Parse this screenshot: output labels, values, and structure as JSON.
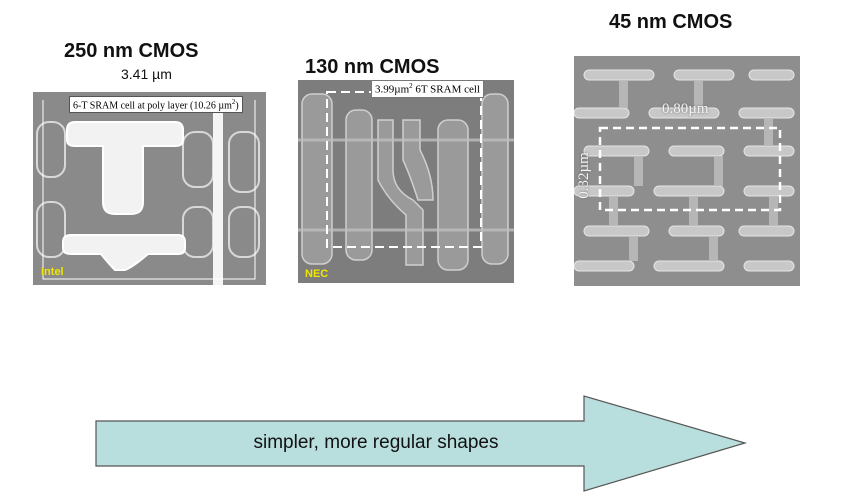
{
  "panels": [
    {
      "title": "250 nm CMOS",
      "subtitle": "3.41 µm",
      "label_main": "6-T SRAM cell at poly layer (10.26 µm",
      "label_sup": "2",
      "label_tail": ")",
      "vendor": "Intel"
    },
    {
      "title": "130 nm CMOS",
      "label_main": "3.99µm",
      "label_sup": "2",
      "label_tail": " 6T SRAM cell",
      "vendor": "NEC"
    },
    {
      "title": "45 nm CMOS",
      "dim_horizontal": "0.80µm",
      "dim_vertical": "0.32µm"
    }
  ],
  "arrow": {
    "text": "simpler, more regular shapes",
    "fill_color": "#b9dede",
    "stroke_color": "#555555"
  }
}
